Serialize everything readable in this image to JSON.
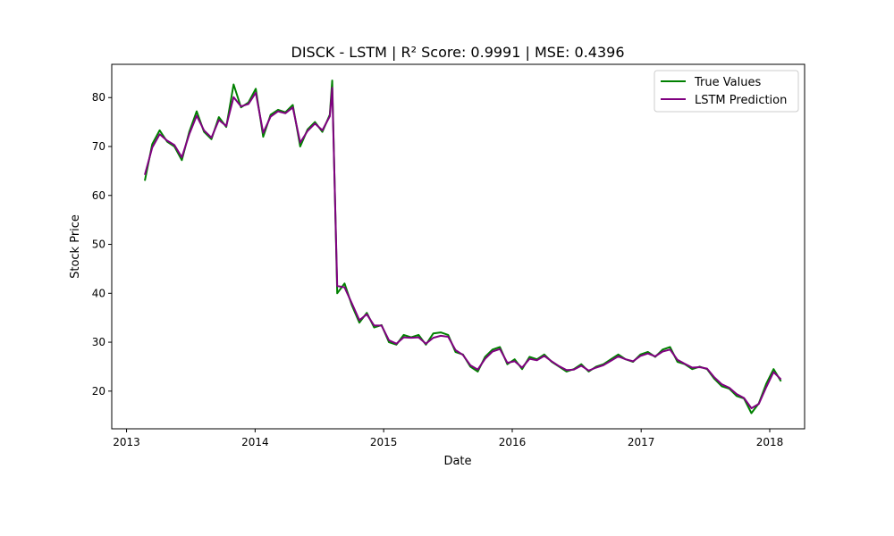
{
  "chart_data": {
    "type": "line",
    "title": "DISCK - LSTM | R² Score: 0.9991 | MSE: 0.4396",
    "xlabel": "Date",
    "ylabel": "Stock Price",
    "xlim": [
      "2012-11-20",
      "2018-04-10"
    ],
    "ylim": [
      12.3,
      86.8
    ],
    "x_ticks": [
      "2013-01-01",
      "2014-01-01",
      "2015-01-01",
      "2016-01-01",
      "2017-01-01",
      "2018-01-01"
    ],
    "x_tick_labels": [
      "2013",
      "2014",
      "2015",
      "2016",
      "2017",
      "2018"
    ],
    "y_ticks": [
      20,
      30,
      40,
      50,
      60,
      70,
      80
    ],
    "grid": false,
    "legend": "top-right",
    "x": [
      "2013-02-22",
      "2013-03-15",
      "2013-04-05",
      "2013-04-26",
      "2013-05-17",
      "2013-06-07",
      "2013-06-28",
      "2013-07-19",
      "2013-08-09",
      "2013-08-30",
      "2013-09-20",
      "2013-10-11",
      "2013-11-01",
      "2013-11-22",
      "2013-12-13",
      "2014-01-03",
      "2014-01-24",
      "2014-02-14",
      "2014-03-07",
      "2014-03-28",
      "2014-04-18",
      "2014-05-09",
      "2014-05-30",
      "2014-06-20",
      "2014-07-11",
      "2014-08-01",
      "2014-08-08",
      "2014-08-22",
      "2014-09-12",
      "2014-10-03",
      "2014-10-24",
      "2014-11-14",
      "2014-12-05",
      "2014-12-26",
      "2015-01-16",
      "2015-02-06",
      "2015-02-27",
      "2015-03-20",
      "2015-04-10",
      "2015-05-01",
      "2015-05-22",
      "2015-06-12",
      "2015-07-03",
      "2015-07-24",
      "2015-08-14",
      "2015-09-04",
      "2015-09-25",
      "2015-10-16",
      "2015-11-06",
      "2015-11-27",
      "2015-12-18",
      "2016-01-08",
      "2016-01-29",
      "2016-02-19",
      "2016-03-11",
      "2016-04-01",
      "2016-04-22",
      "2016-05-13",
      "2016-06-03",
      "2016-06-24",
      "2016-07-15",
      "2016-08-05",
      "2016-08-26",
      "2016-09-16",
      "2016-10-07",
      "2016-10-28",
      "2016-11-18",
      "2016-12-09",
      "2016-12-30",
      "2017-01-20",
      "2017-02-10",
      "2017-03-03",
      "2017-03-24",
      "2017-04-14",
      "2017-05-05",
      "2017-05-26",
      "2017-06-16",
      "2017-07-07",
      "2017-07-28",
      "2017-08-18",
      "2017-09-08",
      "2017-09-29",
      "2017-10-20",
      "2017-11-10",
      "2017-12-01",
      "2017-12-22",
      "2018-01-12",
      "2018-02-02"
    ],
    "series": [
      {
        "name": "True Values",
        "color": "#008000",
        "values": [
          63.0,
          70.5,
          73.3,
          71.0,
          70.0,
          67.2,
          73.0,
          77.2,
          73.0,
          71.5,
          76.0,
          74.0,
          82.7,
          78.0,
          79.0,
          81.8,
          72.0,
          76.5,
          77.5,
          77.0,
          78.5,
          70.0,
          73.5,
          75.0,
          73.0,
          76.5,
          83.5,
          40.0,
          42.0,
          37.5,
          34.0,
          36.0,
          33.0,
          33.5,
          30.0,
          29.5,
          31.5,
          31.0,
          31.5,
          29.5,
          31.8,
          32.0,
          31.5,
          28.0,
          27.5,
          25.0,
          24.0,
          27.0,
          28.5,
          29.0,
          25.5,
          26.5,
          24.5,
          27.0,
          26.5,
          27.5,
          26.0,
          25.0,
          24.0,
          24.5,
          25.5,
          24.0,
          25.0,
          25.5,
          26.5,
          27.5,
          26.5,
          26.0,
          27.5,
          28.0,
          27.0,
          28.5,
          29.0,
          26.0,
          25.5,
          24.5,
          25.0,
          24.5,
          22.5,
          21.0,
          20.5,
          19.0,
          18.5,
          15.5,
          17.5,
          21.5,
          24.5,
          22.0
        ]
      },
      {
        "name": "LSTM Prediction",
        "color": "#800080",
        "values": [
          64.2,
          69.8,
          72.5,
          71.2,
          70.3,
          67.8,
          72.5,
          76.3,
          73.3,
          71.8,
          75.4,
          74.2,
          80.1,
          78.2,
          78.7,
          81.0,
          72.8,
          76.1,
          77.2,
          76.8,
          78.0,
          70.8,
          73.2,
          74.7,
          73.3,
          76.2,
          82.0,
          41.5,
          41.2,
          37.9,
          34.5,
          35.7,
          33.4,
          33.4,
          30.4,
          29.7,
          31.0,
          30.9,
          31.0,
          29.7,
          30.9,
          31.3,
          31.1,
          28.4,
          27.4,
          25.3,
          24.4,
          26.6,
          28.1,
          28.6,
          25.8,
          26.1,
          24.8,
          26.6,
          26.3,
          27.2,
          26.1,
          25.1,
          24.3,
          24.4,
          25.2,
          24.2,
          24.8,
          25.3,
          26.2,
          27.1,
          26.5,
          26.1,
          27.2,
          27.7,
          27.1,
          28.1,
          28.5,
          26.4,
          25.6,
          24.8,
          24.9,
          24.6,
          22.8,
          21.4,
          20.7,
          19.4,
          18.6,
          16.5,
          17.4,
          20.8,
          23.9,
          22.4
        ]
      }
    ]
  }
}
